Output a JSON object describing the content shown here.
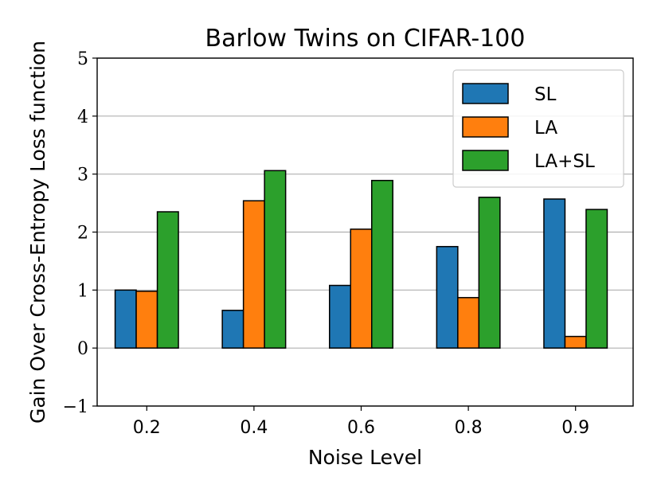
{
  "chart_data": {
    "type": "bar",
    "title": "Barlow Twins on CIFAR-100",
    "xlabel": "Noise Level",
    "ylabel": "Gain Over Cross-Entropy Loss function",
    "categories": [
      "0.2",
      "0.4",
      "0.6",
      "0.8",
      "0.9"
    ],
    "series": [
      {
        "name": "SL",
        "color": "#1f77b4",
        "values": [
          1.0,
          0.65,
          1.08,
          1.75,
          2.57
        ]
      },
      {
        "name": "LA",
        "color": "#ff7f0e",
        "values": [
          0.98,
          2.54,
          2.05,
          0.87,
          0.2
        ]
      },
      {
        "name": "LA+SL",
        "color": "#2ca02c",
        "values": [
          2.35,
          3.06,
          2.89,
          2.6,
          2.39
        ]
      }
    ],
    "ylim": [
      -1,
      5
    ],
    "yticks": [
      -1,
      0,
      1,
      2,
      3,
      4,
      5
    ],
    "ytick_labels": [
      "−1",
      "0",
      "1",
      "2",
      "3",
      "4",
      "5"
    ],
    "grid": "horizontal",
    "legend_position": "top-right"
  }
}
